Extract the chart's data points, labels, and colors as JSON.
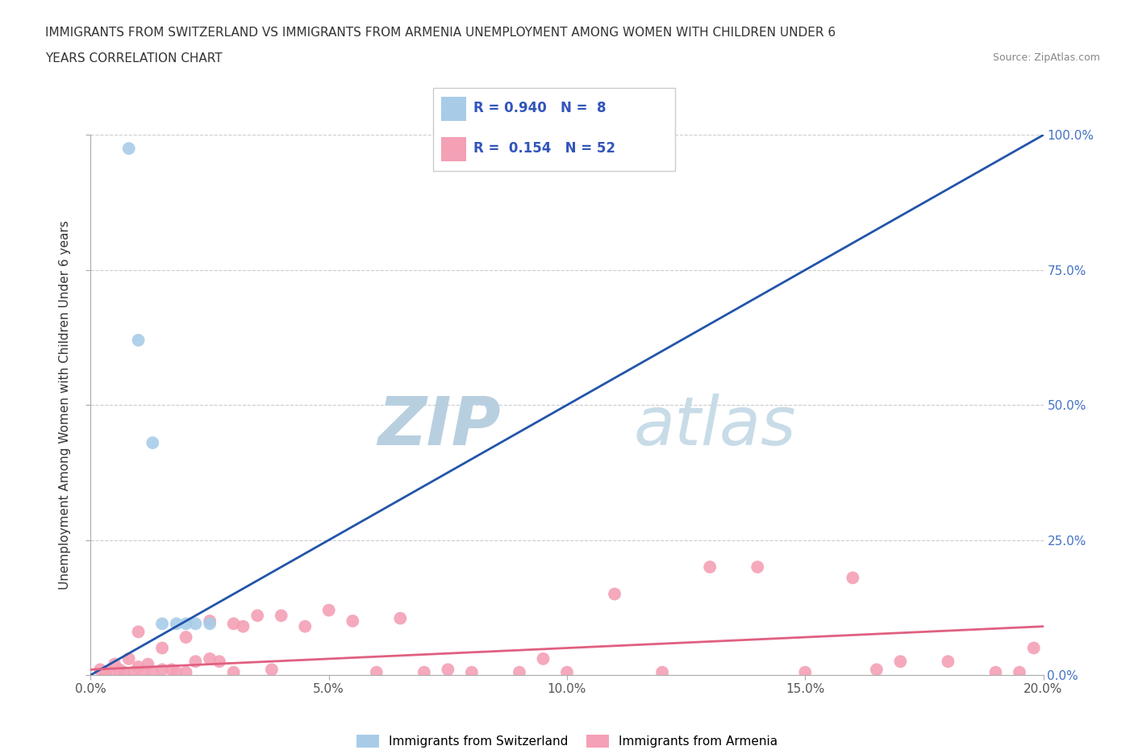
{
  "title_line1": "IMMIGRANTS FROM SWITZERLAND VS IMMIGRANTS FROM ARMENIA UNEMPLOYMENT AMONG WOMEN WITH CHILDREN UNDER 6",
  "title_line2": "YEARS CORRELATION CHART",
  "source_text": "Source: ZipAtlas.com",
  "ylabel": "Unemployment Among Women with Children Under 6 years",
  "xlim": [
    0,
    0.2
  ],
  "ylim": [
    0,
    1.0
  ],
  "xticks": [
    0.0,
    0.05,
    0.1,
    0.15,
    0.2
  ],
  "xtick_labels": [
    "0.0%",
    "5.0%",
    "10.0%",
    "15.0%",
    "20.0%"
  ],
  "yticks": [
    0.0,
    0.25,
    0.5,
    0.75,
    1.0
  ],
  "ytick_labels": [
    "0.0%",
    "25.0%",
    "50.0%",
    "75.0%",
    "100.0%"
  ],
  "blue_R": 0.94,
  "blue_N": 8,
  "pink_R": 0.154,
  "pink_N": 52,
  "blue_color": "#a8cce8",
  "blue_line_color": "#2255aa",
  "pink_color": "#f4a0b5",
  "pink_line_color": "#e06080",
  "legend_label_blue": "Immigrants from Switzerland",
  "legend_label_pink": "Immigrants from Armenia",
  "watermark_zip": "ZIP",
  "watermark_atlas": "atlas",
  "watermark_color": "#c8d8ea",
  "blue_scatter_x": [
    0.008,
    0.01,
    0.013,
    0.015,
    0.018,
    0.02,
    0.022,
    0.025
  ],
  "blue_scatter_y": [
    0.975,
    0.62,
    0.43,
    0.095,
    0.095,
    0.095,
    0.095,
    0.095
  ],
  "pink_scatter_x": [
    0.002,
    0.003,
    0.004,
    0.005,
    0.006,
    0.007,
    0.008,
    0.009,
    0.01,
    0.01,
    0.011,
    0.012,
    0.013,
    0.015,
    0.015,
    0.017,
    0.018,
    0.02,
    0.02,
    0.022,
    0.025,
    0.025,
    0.027,
    0.03,
    0.03,
    0.032,
    0.035,
    0.038,
    0.04,
    0.045,
    0.05,
    0.055,
    0.06,
    0.065,
    0.07,
    0.075,
    0.08,
    0.09,
    0.095,
    0.1,
    0.11,
    0.12,
    0.13,
    0.14,
    0.15,
    0.16,
    0.165,
    0.17,
    0.18,
    0.19,
    0.195,
    0.198
  ],
  "pink_scatter_y": [
    0.01,
    0.005,
    0.005,
    0.02,
    0.01,
    0.005,
    0.03,
    0.005,
    0.08,
    0.015,
    0.005,
    0.02,
    0.005,
    0.05,
    0.01,
    0.01,
    0.005,
    0.07,
    0.005,
    0.025,
    0.1,
    0.03,
    0.025,
    0.095,
    0.005,
    0.09,
    0.11,
    0.01,
    0.11,
    0.09,
    0.12,
    0.1,
    0.005,
    0.105,
    0.005,
    0.01,
    0.005,
    0.005,
    0.03,
    0.005,
    0.15,
    0.005,
    0.2,
    0.2,
    0.005,
    0.18,
    0.01,
    0.025,
    0.025,
    0.005,
    0.005,
    0.05
  ],
  "blue_trendline_x": [
    0.0,
    0.2
  ],
  "blue_trendline_y": [
    0.0,
    1.0
  ],
  "pink_trendline_x": [
    0.0,
    0.2
  ],
  "pink_trendline_y": [
    0.01,
    0.09
  ]
}
